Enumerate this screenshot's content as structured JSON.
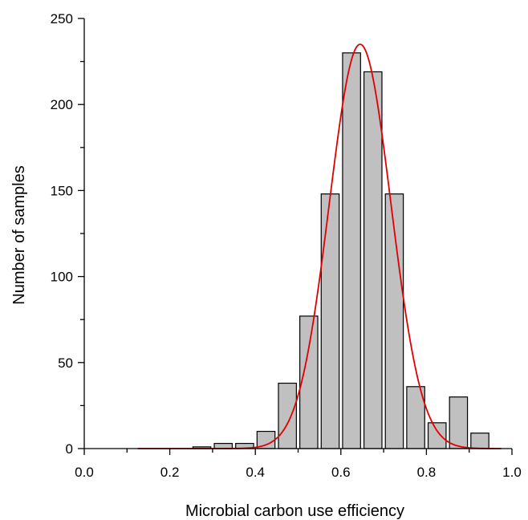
{
  "chart_data": {
    "type": "bar",
    "xlabel": "Microbial carbon use efficiency",
    "ylabel": "Number of samples",
    "xlim": [
      0.0,
      1.0
    ],
    "ylim": [
      0,
      250
    ],
    "x_ticks": [
      "0.0",
      "0.2",
      "0.4",
      "0.6",
      "0.8",
      "1.0"
    ],
    "x_tick_values": [
      0.0,
      0.2,
      0.4,
      0.6,
      0.8,
      1.0
    ],
    "y_ticks": [
      "0",
      "50",
      "100",
      "150",
      "200",
      "250"
    ],
    "y_tick_values": [
      0,
      50,
      100,
      150,
      200,
      250
    ],
    "bin_width": 0.05,
    "bins": [
      {
        "x": 0.275,
        "count": 1
      },
      {
        "x": 0.325,
        "count": 3
      },
      {
        "x": 0.375,
        "count": 3
      },
      {
        "x": 0.425,
        "count": 10
      },
      {
        "x": 0.475,
        "count": 38
      },
      {
        "x": 0.525,
        "count": 77
      },
      {
        "x": 0.575,
        "count": 148
      },
      {
        "x": 0.625,
        "count": 230
      },
      {
        "x": 0.675,
        "count": 219
      },
      {
        "x": 0.725,
        "count": 148
      },
      {
        "x": 0.775,
        "count": 36
      },
      {
        "x": 0.825,
        "count": 15
      },
      {
        "x": 0.875,
        "count": 30
      },
      {
        "x": 0.925,
        "count": 9
      }
    ],
    "fit_curve": {
      "type": "gaussian",
      "peak": 235,
      "mean": 0.645,
      "sd": 0.072,
      "x_range": [
        0.125,
        0.975
      ],
      "color": "#e00000"
    },
    "bar_color": "#c0c0c0"
  }
}
